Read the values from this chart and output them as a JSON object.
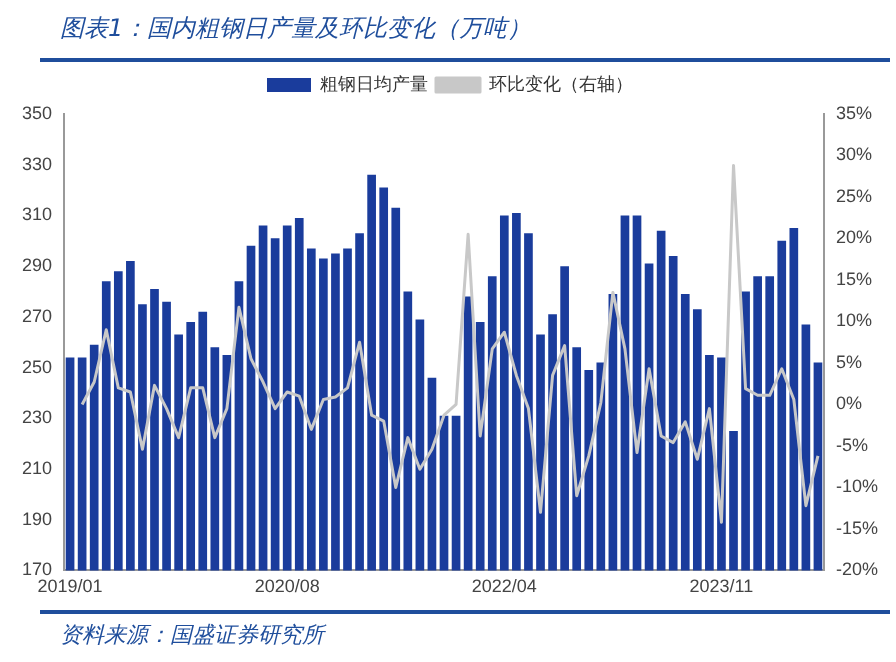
{
  "chart_data": {
    "type": "bar",
    "title": "图表1：国内粗钢日产量及环比变化（万吨）",
    "annotations": [
      "资料来源：国盛证券研究所"
    ],
    "categories": [
      "2019/01",
      null,
      null,
      null,
      null,
      null,
      null,
      null,
      null,
      null,
      null,
      null,
      null,
      null,
      null,
      null,
      null,
      null,
      "2020/08",
      null,
      null,
      null,
      null,
      null,
      null,
      null,
      null,
      null,
      null,
      null,
      null,
      null,
      null,
      null,
      null,
      null,
      "2022/04",
      null,
      null,
      null,
      null,
      null,
      null,
      null,
      null,
      null,
      null,
      null,
      null,
      null,
      null,
      null,
      null,
      null,
      "2023/11",
      null,
      null,
      null,
      null,
      null,
      null,
      null,
      null
    ],
    "series": [
      {
        "name": "粗钢日均产量",
        "color": "#1a3c9c",
        "values": [
          254,
          254,
          259,
          284,
          288,
          292,
          275,
          281,
          276,
          263,
          268,
          272,
          258,
          255,
          284,
          298,
          306,
          301,
          306,
          309,
          297,
          293,
          295,
          297,
          303,
          326,
          321,
          313,
          280,
          269,
          246,
          231,
          231,
          278,
          268,
          286,
          310,
          311,
          303,
          263,
          271,
          290,
          258,
          249,
          252,
          279,
          310,
          310,
          291,
          304,
          294,
          279,
          273,
          255,
          254,
          225,
          280,
          286,
          286,
          300,
          305,
          267,
          252
        ]
      },
      {
        "name": "环比变化（右轴）",
        "type": "line",
        "axis": "y2",
        "color": "#c8c8c8",
        "values": [
          null,
          0,
          2.7,
          9,
          2,
          1.5,
          -5.4,
          2.3,
          -0.5,
          -4,
          2,
          2,
          -4,
          -0.5,
          11.7,
          5.5,
          2.7,
          -0.5,
          1.5,
          1,
          -3,
          0.6,
          0.9,
          2,
          7.5,
          -1.3,
          -2,
          -10,
          -4,
          -7.8,
          -5.4,
          -1.3,
          0,
          20.5,
          -3.8,
          6.7,
          8.7,
          3.5,
          -0.5,
          -13,
          3.5,
          7.1,
          -11,
          -6.2,
          0.2,
          13.5,
          6.7,
          -5.8,
          4.3,
          -3.8,
          -4.6,
          -2.1,
          -6.6,
          -0.5,
          -14.2,
          28.8,
          1.9,
          1.1,
          1.1,
          4.3,
          0.6,
          -12.2,
          -6.2
        ]
      }
    ],
    "ylim": [
      170,
      350
    ],
    "yticks": [
      170,
      190,
      210,
      230,
      250,
      270,
      290,
      310,
      330,
      350
    ],
    "y2lim": [
      -20,
      35
    ],
    "y2ticks": [
      {
        "value": -20,
        "label": "-20%"
      },
      {
        "value": -15,
        "label": "-15%"
      },
      {
        "value": -10,
        "label": "-10%"
      },
      {
        "value": -5,
        "label": "-5%"
      },
      {
        "value": 0,
        "label": "0%"
      },
      {
        "value": 5,
        "label": "5%"
      },
      {
        "value": 10,
        "label": "10%"
      },
      {
        "value": 15,
        "label": "15%"
      },
      {
        "value": 20,
        "label": "20%"
      },
      {
        "value": 25,
        "label": "25%"
      },
      {
        "value": 30,
        "label": "30%"
      },
      {
        "value": 35,
        "label": "35%"
      }
    ],
    "grid": false,
    "legend": "top",
    "marker": "none",
    "line_style": "solid"
  }
}
